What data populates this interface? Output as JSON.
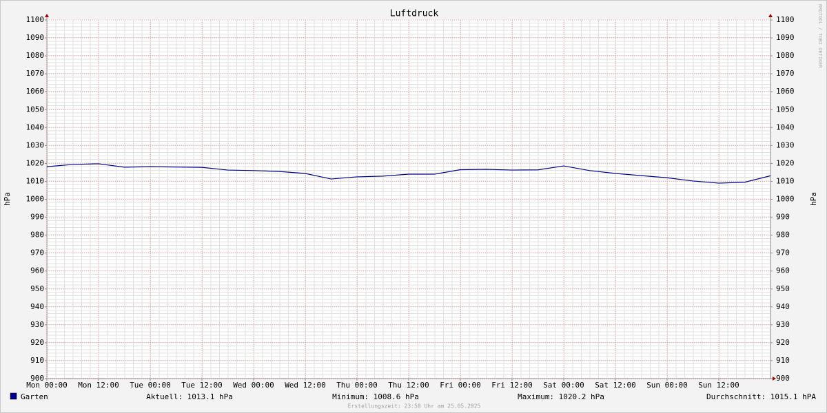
{
  "chart_data": {
    "type": "line",
    "title": "Luftdruck",
    "y_label": "hPa",
    "y2_label": "hPa",
    "x": [
      0,
      6,
      12,
      18,
      24,
      30,
      36,
      42,
      48,
      54,
      60,
      66,
      72,
      78,
      84,
      90,
      96,
      102,
      108,
      114,
      120,
      126,
      132,
      138,
      144,
      150,
      156,
      162,
      168
    ],
    "xlim": [
      0,
      168
    ],
    "xticks": [
      {
        "value": 0,
        "label": "Mon 00:00"
      },
      {
        "value": 12,
        "label": "Mon 12:00"
      },
      {
        "value": 24,
        "label": "Tue 00:00"
      },
      {
        "value": 36,
        "label": "Tue 12:00"
      },
      {
        "value": 48,
        "label": "Wed 00:00"
      },
      {
        "value": 60,
        "label": "Wed 12:00"
      },
      {
        "value": 72,
        "label": "Thu 00:00"
      },
      {
        "value": 84,
        "label": "Thu 12:00"
      },
      {
        "value": 96,
        "label": "Fri 00:00"
      },
      {
        "value": 108,
        "label": "Fri 12:00"
      },
      {
        "value": 120,
        "label": "Sat 00:00"
      },
      {
        "value": 132,
        "label": "Sat 12:00"
      },
      {
        "value": 144,
        "label": "Sun 00:00"
      },
      {
        "value": 156,
        "label": "Sun 12:00"
      }
    ],
    "ylim": [
      900,
      1100
    ],
    "yticks": [
      900,
      910,
      920,
      930,
      940,
      950,
      960,
      970,
      980,
      990,
      1000,
      1010,
      1020,
      1030,
      1040,
      1050,
      1060,
      1070,
      1080,
      1090,
      1100
    ],
    "y2lim": [
      900,
      1100
    ],
    "y2ticks": [
      900,
      910,
      920,
      930,
      940,
      950,
      960,
      970,
      980,
      990,
      1000,
      1010,
      1020,
      1030,
      1040,
      1050,
      1060,
      1070,
      1080,
      1090,
      1100
    ],
    "grid": true,
    "series": [
      {
        "name": "Garten",
        "color": "#00008b",
        "values": [
          1018.2,
          1019.4,
          1019.8,
          1017.9,
          1018.2,
          1018.0,
          1017.8,
          1016.3,
          1016.0,
          1015.5,
          1014.4,
          1011.3,
          1012.5,
          1012.9,
          1014.0,
          1014.0,
          1016.5,
          1016.7,
          1016.3,
          1016.4,
          1018.6,
          1016.0,
          1014.4,
          1013.2,
          1012.0,
          1010.2,
          1009.0,
          1009.5,
          1013.1
        ]
      }
    ],
    "stats": [
      "Aktuell: 1013.1 hPa",
      "Minimum: 1008.6 hPa",
      "Maximum: 1020.2 hPa",
      "Durchschnitt: 1015.1 hPA"
    ],
    "footer": "Erstellungszeit: 23:58 Uhr am 25.05.2025",
    "watermark": "RRDTOOL / TOBI OETIKER"
  }
}
